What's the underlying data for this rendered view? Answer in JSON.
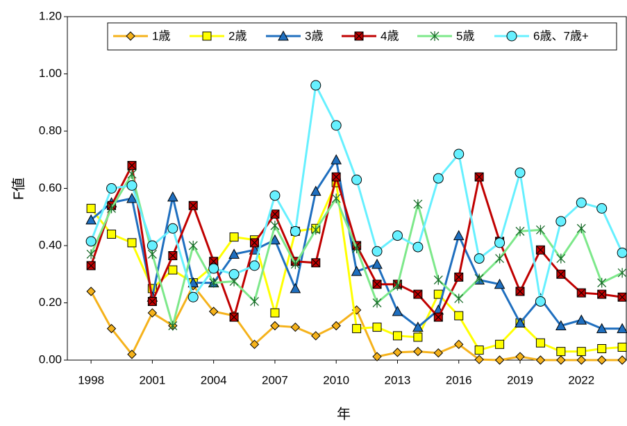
{
  "chart_data": {
    "type": "line",
    "x_label": "年",
    "y_label": "F値",
    "x": [
      1998,
      1999,
      2000,
      2001,
      2002,
      2003,
      2004,
      2005,
      2006,
      2007,
      2008,
      2009,
      2010,
      2011,
      2012,
      2013,
      2014,
      2015,
      2016,
      2017,
      2018,
      2019,
      2020,
      2021,
      2022,
      2023,
      2024
    ],
    "series": [
      {
        "name": "1歳",
        "color": "#f5b21b",
        "marker": "diamond",
        "values": [
          0.24,
          0.11,
          0.02,
          0.165,
          0.12,
          0.26,
          0.17,
          0.155,
          0.055,
          0.12,
          0.115,
          0.085,
          0.12,
          0.175,
          0.012,
          0.027,
          0.03,
          0.025,
          0.055,
          0.002,
          0,
          0.012,
          0,
          0,
          0,
          0,
          0
        ]
      },
      {
        "name": "2歳",
        "color": "#ffff00",
        "marker": "square",
        "values": [
          0.53,
          0.44,
          0.41,
          0.25,
          0.315,
          0.27,
          0.33,
          0.43,
          0.42,
          0.165,
          0.45,
          0.46,
          0.62,
          0.11,
          0.115,
          0.085,
          0.08,
          0.23,
          0.155,
          0.035,
          0.055,
          0.13,
          0.06,
          0.03,
          0.03,
          0.04,
          0.045
        ]
      },
      {
        "name": "3歳",
        "color": "#1f6fbf",
        "marker": "triangle",
        "values": [
          0.49,
          0.55,
          0.565,
          0.22,
          0.57,
          0.27,
          0.27,
          0.37,
          0.385,
          0.42,
          0.25,
          0.59,
          0.7,
          0.31,
          0.335,
          0.17,
          0.115,
          0.175,
          0.435,
          0.28,
          0.265,
          0.13,
          0.215,
          0.12,
          0.14,
          0.11,
          0.11
        ]
      },
      {
        "name": "4歳",
        "color": "#c00000",
        "marker": "xsquare",
        "values": [
          0.33,
          0.54,
          0.68,
          0.205,
          0.365,
          0.54,
          0.345,
          0.15,
          0.41,
          0.51,
          0.345,
          0.34,
          0.64,
          0.4,
          0.265,
          0.265,
          0.23,
          0.15,
          0.29,
          0.64,
          0.415,
          0.24,
          0.385,
          0.3,
          0.235,
          0.23,
          0.22
        ]
      },
      {
        "name": "5歳",
        "color": "#7de88a",
        "marker": "asterisk",
        "values": [
          0.37,
          0.53,
          0.65,
          0.37,
          0.12,
          0.4,
          0.27,
          0.275,
          0.205,
          0.47,
          0.335,
          0.455,
          0.565,
          0.39,
          0.2,
          0.26,
          0.545,
          0.28,
          0.215,
          0.285,
          0.355,
          0.45,
          0.455,
          0.355,
          0.46,
          0.27,
          0.305
        ]
      },
      {
        "name": "6歳、7歳+",
        "color": "#66f0ff",
        "marker": "circle",
        "values": [
          0.415,
          0.6,
          0.61,
          0.4,
          0.46,
          0.22,
          0.32,
          0.3,
          0.33,
          0.575,
          0.45,
          0.96,
          0.82,
          0.63,
          0.38,
          0.435,
          0.395,
          0.635,
          0.72,
          0.355,
          0.41,
          0.655,
          0.205,
          0.485,
          0.55,
          0.53,
          0.375
        ]
      }
    ],
    "xlim": [
      1996.84,
      2024.2
    ],
    "xticks": [
      1998,
      2001,
      2004,
      2007,
      2010,
      2013,
      2016,
      2019,
      2022
    ],
    "ylim": [
      0,
      1.2
    ],
    "yticks": [
      {
        "value": 0,
        "label": "0.00"
      },
      {
        "value": 0.2,
        "label": "0.20"
      },
      {
        "value": 0.4,
        "label": "0.40"
      },
      {
        "value": 0.6,
        "label": "0.60"
      },
      {
        "value": 0.8,
        "label": "0.80"
      },
      {
        "value": 1.0,
        "label": "1.00"
      },
      {
        "value": 1.2,
        "label": "1.20"
      }
    ],
    "grid": false,
    "legend": "top"
  }
}
